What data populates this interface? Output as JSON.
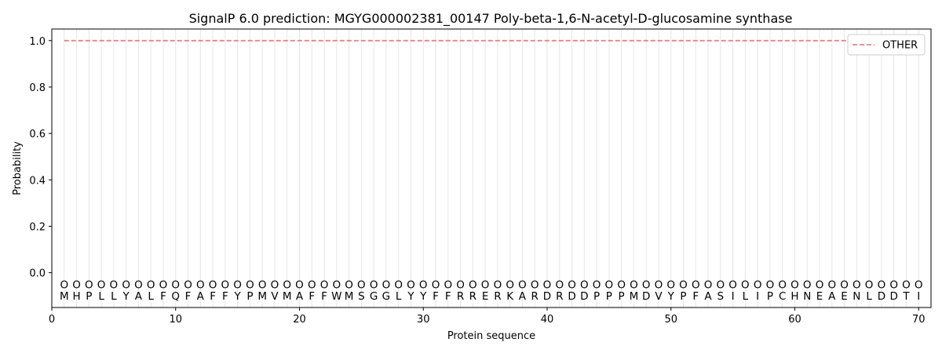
{
  "chart_data": {
    "type": "line",
    "title": "SignalP 6.0 prediction: MGYG000002381_00147 Poly-beta-1,6-N-acetyl-D-glucosamine synthase",
    "xlabel": "Protein sequence",
    "ylabel": "Probability",
    "xlim": [
      0,
      71
    ],
    "ylim": [
      -0.15,
      1.05
    ],
    "xticks": [
      0,
      10,
      20,
      30,
      40,
      50,
      60,
      70
    ],
    "yticks": [
      0.0,
      0.2,
      0.4,
      0.6,
      0.8,
      1.0
    ],
    "ytick_labels": [
      "0.0",
      "0.2",
      "0.4",
      "0.6",
      "0.8",
      "1.0"
    ],
    "legend_position": "top-right",
    "grid": "vertical lines at each residue position",
    "sequence": [
      "M",
      "H",
      "P",
      "L",
      "L",
      "Y",
      "A",
      "L",
      "F",
      "Q",
      "F",
      "A",
      "F",
      "F",
      "Y",
      "P",
      "M",
      "V",
      "M",
      "A",
      "F",
      "F",
      "W",
      "M",
      "S",
      "G",
      "G",
      "L",
      "Y",
      "Y",
      "F",
      "F",
      "R",
      "R",
      "E",
      "R",
      "K",
      "A",
      "R",
      "D",
      "R",
      "D",
      "D",
      "P",
      "P",
      "P",
      "M",
      "D",
      "V",
      "Y",
      "P",
      "F",
      "A",
      "S",
      "I",
      "L",
      "I",
      "P",
      "C",
      "H",
      "N",
      "E",
      "A",
      "E",
      "N",
      "L",
      "D",
      "D",
      "T",
      "I"
    ],
    "position_label": "O",
    "series": [
      {
        "name": "OTHER",
        "color": "#f08080",
        "style": "dashed",
        "x_range": [
          1,
          70
        ],
        "value": 1.0
      }
    ]
  }
}
